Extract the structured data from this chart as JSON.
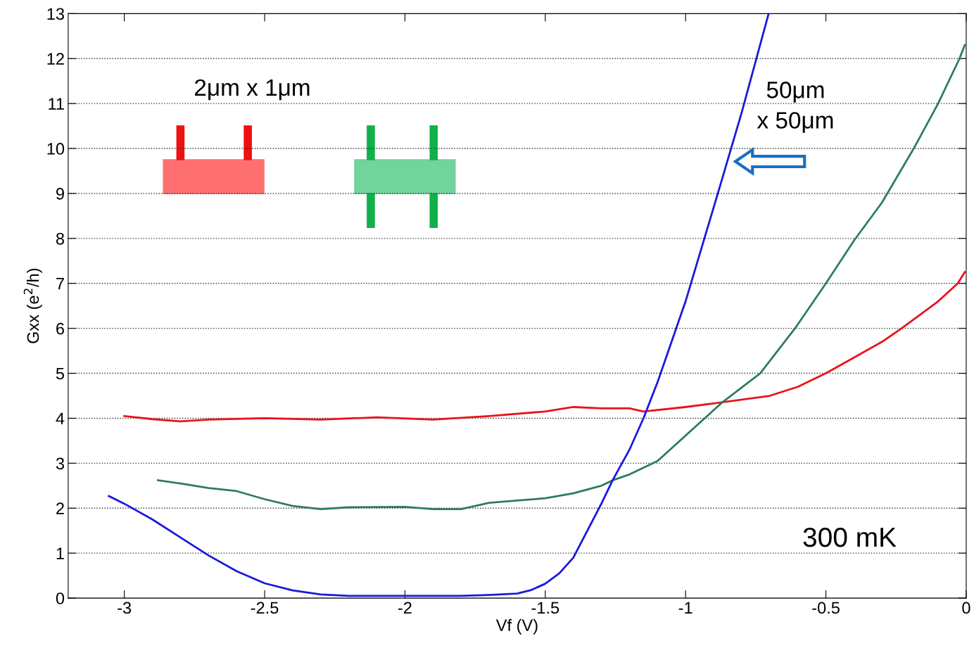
{
  "chart_data": {
    "type": "line",
    "xlabel": "Vf (V)",
    "ylabel": "Gxx (e$^{2}$/h)",
    "xlim": [
      -3.2,
      0
    ],
    "ylim": [
      0,
      13
    ],
    "xticks": [
      -3,
      -2.5,
      -2,
      -1.5,
      -1,
      -0.5,
      0
    ],
    "yticks": [
      0,
      1,
      2,
      3,
      4,
      5,
      6,
      7,
      8,
      9,
      10,
      11,
      12,
      13
    ],
    "grid": "y",
    "line_style": "solid",
    "marker": "none",
    "annotations": [
      "2μm x 1μm",
      "50μm\nx 50μm",
      "300 mK"
    ],
    "series": [
      {
        "color": "#e8141b",
        "x": [
          -3.0,
          -2.9,
          -2.8,
          -2.7,
          -2.5,
          -2.3,
          -2.1,
          -1.9,
          -1.7,
          -1.5,
          -1.4,
          -1.3,
          -1.2,
          -1.15,
          -1.0,
          -0.9,
          -0.7,
          -0.6,
          -0.5,
          -0.4,
          -0.3,
          -0.23,
          -0.1,
          -0.03,
          -0.005
        ],
        "values": [
          4.05,
          3.98,
          3.93,
          3.97,
          4.0,
          3.97,
          4.02,
          3.97,
          4.05,
          4.15,
          4.25,
          4.22,
          4.22,
          4.15,
          4.25,
          4.33,
          4.5,
          4.7,
          5.0,
          5.35,
          5.7,
          6.0,
          6.6,
          7.0,
          7.25
        ]
      },
      {
        "color": "#2e7d5b",
        "x": [
          -2.88,
          -2.8,
          -2.7,
          -2.6,
          -2.5,
          -2.4,
          -2.3,
          -2.2,
          -2.0,
          -1.9,
          -1.8,
          -1.7,
          -1.6,
          -1.5,
          -1.4,
          -1.3,
          -1.26,
          -1.2,
          -1.1,
          -0.87,
          -0.734,
          -0.61,
          -0.5,
          -0.4,
          -0.3,
          -0.187,
          -0.1,
          -0.024,
          -0.005
        ],
        "values": [
          2.62,
          2.55,
          2.45,
          2.38,
          2.2,
          2.05,
          1.98,
          2.02,
          2.03,
          1.98,
          1.98,
          2.12,
          2.17,
          2.22,
          2.33,
          2.5,
          2.62,
          2.75,
          3.05,
          4.35,
          5.0,
          6.0,
          7.0,
          7.95,
          8.8,
          10.0,
          11.0,
          12.0,
          12.3
        ]
      },
      {
        "color": "#1a1adc",
        "x": [
          -3.055,
          -3.0,
          -2.9,
          -2.8,
          -2.7,
          -2.6,
          -2.5,
          -2.4,
          -2.3,
          -2.2,
          -2.0,
          -1.8,
          -1.7,
          -1.6,
          -1.55,
          -1.5,
          -1.45,
          -1.4,
          -1.3,
          -1.26,
          -1.2,
          -1.15,
          -1.1,
          -1.0,
          -0.885,
          -0.8,
          -0.704
        ],
        "values": [
          2.27,
          2.1,
          1.75,
          1.35,
          0.95,
          0.6,
          0.33,
          0.17,
          0.08,
          0.05,
          0.05,
          0.05,
          0.07,
          0.1,
          0.18,
          0.32,
          0.55,
          0.9,
          2.1,
          2.62,
          3.3,
          4.0,
          4.8,
          6.6,
          9.0,
          10.8,
          13.0
        ]
      }
    ]
  }
}
